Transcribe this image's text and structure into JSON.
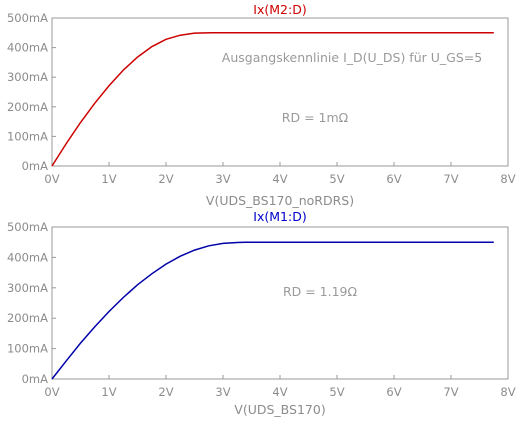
{
  "chart_data": [
    {
      "type": "line",
      "title": "Ix(M2:D)",
      "title_color": "#cc0000",
      "line_color": "#cc0000",
      "xlabel": "V(UDS_BS170_noRDRS)",
      "annotations": [
        "Ausgangskennlinie I_D(U_DS) für U_GS=5",
        "RD = 1mΩ"
      ],
      "xlim": [
        0,
        8
      ],
      "ylim": [
        0,
        500
      ],
      "x_ticks": [
        "0V",
        "1V",
        "2V",
        "3V",
        "4V",
        "5V",
        "6V",
        "7V",
        "8V"
      ],
      "y_ticks": [
        "0mA",
        "100mA",
        "200mA",
        "300mA",
        "400mA",
        "500mA"
      ],
      "grid": false,
      "series": [
        {
          "x": [
            0,
            0.25,
            0.5,
            0.75,
            1.0,
            1.25,
            1.5,
            1.75,
            2.0,
            2.25,
            2.5,
            2.8,
            3.5,
            4.5,
            5.5,
            6.5,
            7.75
          ],
          "y": [
            0,
            76,
            147,
            212,
            271,
            324,
            368,
            403,
            428,
            442,
            449,
            450,
            450,
            450,
            450,
            450,
            450
          ]
        }
      ]
    },
    {
      "type": "line",
      "title": "Ix(M1:D)",
      "title_color": "#0000cc",
      "line_color": "#0000aa",
      "xlabel": "V(UDS_BS170)",
      "annotations": [
        "RD = 1.19Ω"
      ],
      "xlim": [
        0,
        8
      ],
      "ylim": [
        0,
        500
      ],
      "x_ticks": [
        "0V",
        "1V",
        "2V",
        "3V",
        "4V",
        "5V",
        "6V",
        "7V",
        "8V"
      ],
      "y_ticks": [
        "0mA",
        "100mA",
        "200mA",
        "300mA",
        "400mA",
        "500mA"
      ],
      "grid": false,
      "series": [
        {
          "x": [
            0,
            0.25,
            0.5,
            0.75,
            1.0,
            1.25,
            1.5,
            1.75,
            2.0,
            2.25,
            2.5,
            2.75,
            3.0,
            3.25,
            3.4,
            4.0,
            5.0,
            6.0,
            7.0,
            7.75
          ],
          "y": [
            0,
            60,
            118,
            172,
            222,
            268,
            310,
            346,
            378,
            404,
            424,
            438,
            446,
            449,
            450,
            450,
            450,
            450,
            450,
            450
          ]
        }
      ]
    }
  ]
}
